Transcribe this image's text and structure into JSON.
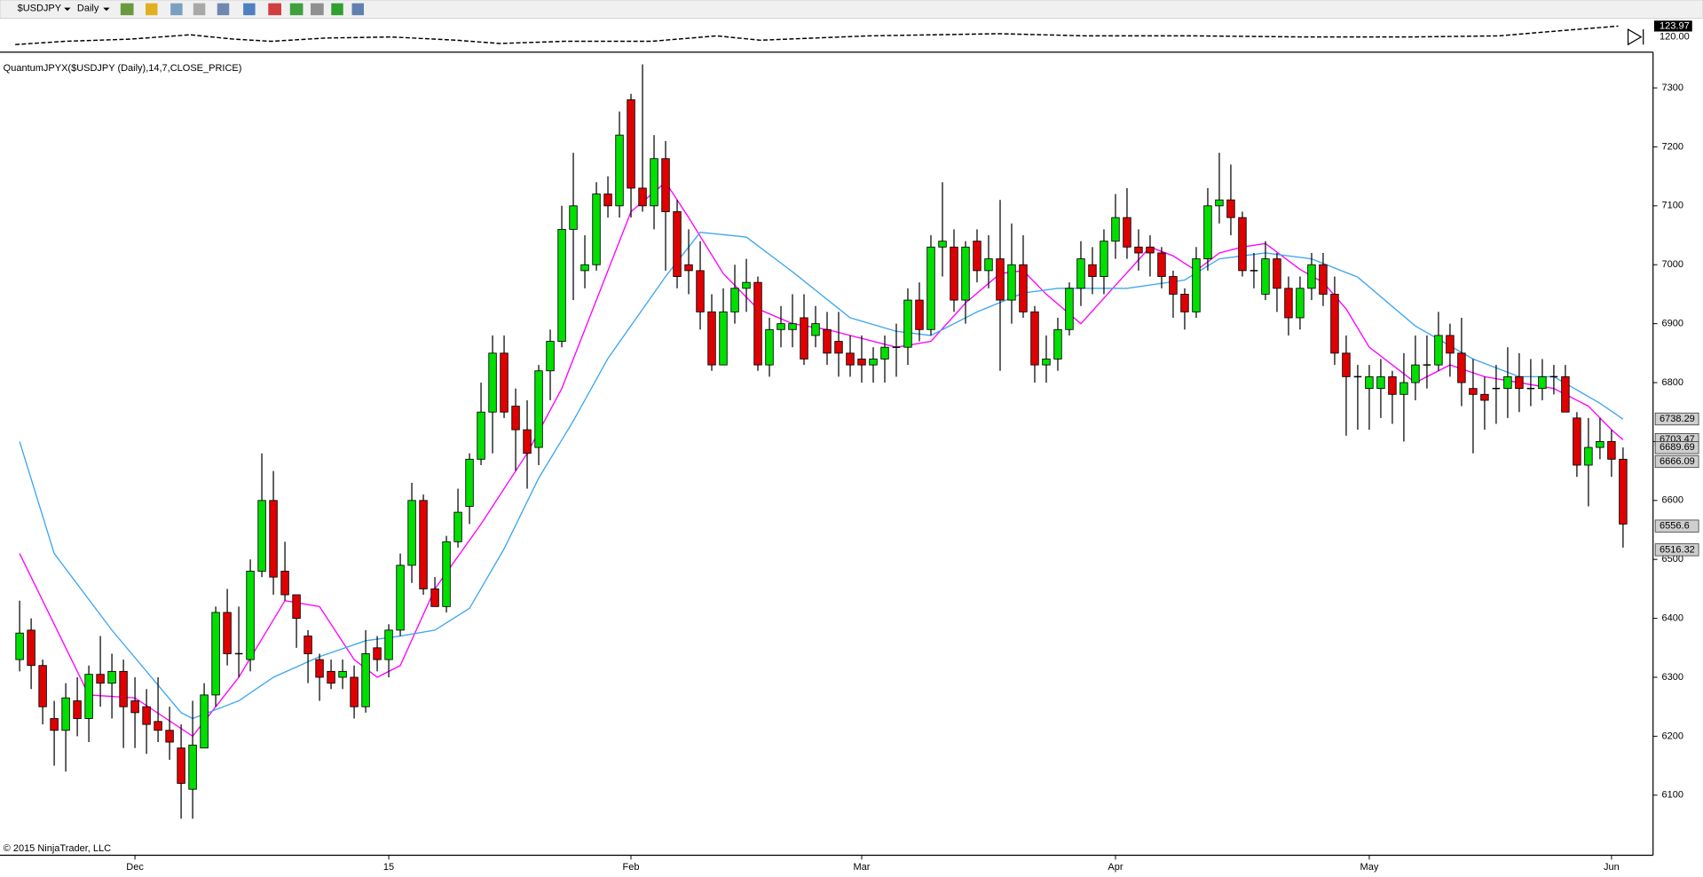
{
  "chart_data": {
    "type": "candlestick",
    "symbol": "$USDJPY",
    "interval": "Daily",
    "title": "QuantumJPYX($USDJPY (Daily),14,7,CLOSE_PRICE)",
    "copyright": "© 2015 NinjaTrader, LLC",
    "overview_labels": [
      "123.97",
      "120.00"
    ],
    "up_color": "#00e000",
    "down_color": "#e00000",
    "xlim": [
      -1.7,
      141.6
    ],
    "xticks": [
      {
        "value": 10,
        "label": "Dec"
      },
      {
        "value": 32,
        "label": "15"
      },
      {
        "value": 53,
        "label": "Feb"
      },
      {
        "value": 73,
        "label": "Mar"
      },
      {
        "value": 95,
        "label": "Apr"
      },
      {
        "value": 117,
        "label": "May"
      },
      {
        "value": 138,
        "label": "Jun"
      }
    ],
    "ylim": [
      5998,
      7357
    ],
    "yticks": [
      6100,
      6200,
      6300,
      6400,
      6500,
      6600,
      6700,
      6800,
      6900,
      7000,
      7100,
      7200,
      7300
    ],
    "candles": {
      "open": [
        6330,
        6380,
        6320,
        6230,
        6210,
        6260,
        6230,
        6305,
        6290,
        6310,
        6260,
        6250,
        6225,
        6210,
        6180,
        6110,
        6180,
        6270,
        6410,
        6340,
        6330,
        6480,
        6600,
        6480,
        6440,
        6370,
        6330,
        6310,
        6300,
        6300,
        6250,
        6350,
        6330,
        6380,
        6490,
        6600,
        6450,
        6420,
        6530,
        6590,
        6670,
        6750,
        6850,
        6760,
        6720,
        6690,
        6820,
        6870,
        7060,
        6990,
        7000,
        7120,
        7100,
        7280,
        7130,
        7100,
        7180,
        7090,
        7000,
        6990,
        6920,
        6830,
        6920,
        6960,
        6970,
        6830,
        6890,
        6890,
        6910,
        6880,
        6890,
        6870,
        6850,
        6840,
        6830,
        6840,
        6860,
        6860,
        6940,
        6890,
        7030,
        7030,
        6940,
        7040,
        6990,
        7010,
        6940,
        7000,
        6920,
        6830,
        6840,
        6890,
        6960,
        7000,
        6980,
        7040,
        7080,
        7030,
        7030,
        7020,
        6980,
        6950,
        6920,
        7010,
        7100,
        7110,
        7080,
        6990,
        6950,
        7010,
        6960,
        6910,
        6960,
        7000,
        6950,
        6850,
        6810,
        6790,
        6790,
        6810,
        6780,
        6800,
        6830,
        6830,
        6880,
        6850,
        6790,
        6780,
        6790,
        6790,
        6810,
        6790,
        6790,
        6810,
        6810,
        6740,
        6660,
        6690,
        6700,
        6670
      ],
      "high": [
        6430,
        6400,
        6330,
        6260,
        6290,
        6300,
        6320,
        6370,
        6340,
        6330,
        6300,
        6280,
        6300,
        6250,
        6220,
        6260,
        6290,
        6420,
        6450,
        6420,
        6500,
        6680,
        6650,
        6530,
        6440,
        6380,
        6340,
        6330,
        6330,
        6320,
        6380,
        6370,
        6390,
        6510,
        6630,
        6610,
        6470,
        6540,
        6620,
        6680,
        6800,
        6880,
        6880,
        6790,
        6770,
        6830,
        6890,
        7100,
        7190,
        7050,
        7140,
        7150,
        7260,
        7290,
        7340,
        7220,
        7210,
        7110,
        7060,
        7040,
        6950,
        6960,
        7000,
        7010,
        6980,
        6910,
        6930,
        6950,
        6950,
        6930,
        6920,
        6920,
        6880,
        6880,
        6860,
        6880,
        6900,
        6960,
        6970,
        7050,
        7140,
        7060,
        7040,
        7060,
        7050,
        7110,
        7070,
        7050,
        6930,
        6880,
        6910,
        6970,
        7040,
        7030,
        7060,
        7120,
        7130,
        7060,
        7050,
        7030,
        6990,
        6960,
        7030,
        7130,
        7190,
        7170,
        7090,
        7020,
        7040,
        7020,
        6980,
        6980,
        7020,
        7020,
        6980,
        6880,
        6830,
        6830,
        6840,
        6820,
        6850,
        6880,
        6880,
        6920,
        6900,
        6910,
        6840,
        6810,
        6830,
        6860,
        6850,
        6840,
        6840,
        6830,
        6830,
        6750,
        6740,
        6740,
        6720,
        6690
      ],
      "low": [
        6310,
        6280,
        6220,
        6150,
        6140,
        6200,
        6190,
        6250,
        6230,
        6180,
        6180,
        6170,
        6190,
        6160,
        6060,
        6060,
        6180,
        6250,
        6320,
        6300,
        6310,
        6470,
        6440,
        6430,
        6350,
        6290,
        6260,
        6280,
        6280,
        6230,
        6240,
        6310,
        6300,
        6370,
        6460,
        6440,
        6420,
        6410,
        6520,
        6560,
        6660,
        6680,
        6740,
        6650,
        6620,
        6660,
        6770,
        6860,
        6940,
        6960,
        6990,
        7080,
        7080,
        7080,
        7090,
        7060,
        6990,
        6960,
        6950,
        6890,
        6820,
        6830,
        6900,
        6920,
        6820,
        6810,
        6860,
        6860,
        6830,
        6860,
        6830,
        6810,
        6810,
        6800,
        6800,
        6800,
        6810,
        6830,
        6870,
        6880,
        6980,
        6920,
        6900,
        6970,
        6960,
        6820,
        6900,
        6910,
        6800,
        6800,
        6820,
        6880,
        6930,
        6950,
        6950,
        7010,
        7010,
        6990,
        6980,
        6960,
        6910,
        6890,
        6910,
        6990,
        7070,
        7050,
        6980,
        6960,
        6940,
        6920,
        6880,
        6890,
        6940,
        6930,
        6830,
        6710,
        6720,
        6720,
        6740,
        6730,
        6700,
        6770,
        6790,
        6820,
        6810,
        6760,
        6680,
        6720,
        6730,
        6740,
        6750,
        6760,
        6770,
        6780,
        6750,
        6640,
        6590,
        6670,
        6640,
        6520
      ],
      "close": [
        6375,
        6320,
        6250,
        6210,
        6265,
        6230,
        6305,
        6290,
        6310,
        6250,
        6240,
        6220,
        6210,
        6190,
        6120,
        6185,
        6270,
        6410,
        6340,
        6340,
        6480,
        6600,
        6470,
        6440,
        6400,
        6340,
        6300,
        6290,
        6310,
        6250,
        6340,
        6330,
        6380,
        6490,
        6600,
        6450,
        6420,
        6530,
        6580,
        6670,
        6750,
        6850,
        6750,
        6720,
        6680,
        6820,
        6870,
        7060,
        7100,
        7000,
        7120,
        7100,
        7220,
        7130,
        7100,
        7180,
        7090,
        6980,
        6990,
        6920,
        6830,
        6920,
        6960,
        6970,
        6830,
        6890,
        6900,
        6900,
        6840,
        6900,
        6850,
        6850,
        6830,
        6830,
        6840,
        6860,
        6860,
        6940,
        6890,
        7030,
        7040,
        6940,
        7030,
        6990,
        7010,
        6940,
        7000,
        6920,
        6830,
        6840,
        6890,
        6960,
        7010,
        6980,
        7040,
        7080,
        7030,
        7020,
        7020,
        6980,
        6950,
        6920,
        7010,
        7100,
        7110,
        7080,
        6990,
        6990,
        7010,
        6960,
        6910,
        6960,
        7000,
        6950,
        6850,
        6810,
        6810,
        6810,
        6810,
        6780,
        6800,
        6830,
        6830,
        6880,
        6850,
        6800,
        6780,
        6770,
        6790,
        6810,
        6790,
        6790,
        6810,
        6810,
        6750,
        6660,
        6690,
        6700,
        6670,
        6560
      ]
    },
    "lines": [
      {
        "color": "#ff00ff",
        "x": [
          0,
          6,
          10,
          15,
          19,
          23,
          26,
          29,
          31,
          33,
          36,
          40,
          44,
          47,
          50,
          53,
          56,
          58,
          61,
          64,
          67,
          70,
          73,
          76,
          79,
          82,
          85,
          87,
          89,
          92,
          95,
          98,
          100,
          102,
          104,
          106,
          108,
          111,
          113,
          115,
          117,
          121,
          124,
          127,
          130,
          133,
          136,
          138,
          139
        ],
        "values": [
          6510,
          6270,
          6265,
          6200,
          6300,
          6430,
          6420,
          6330,
          6300,
          6320,
          6450,
          6560,
          6680,
          6790,
          6940,
          7090,
          7140,
          7080,
          6985,
          6925,
          6900,
          6890,
          6875,
          6860,
          6870,
          6935,
          6985,
          6990,
          6950,
          6900,
          6965,
          7030,
          7015,
          6990,
          7020,
          7030,
          7036,
          6992,
          6970,
          6925,
          6860,
          6800,
          6830,
          6810,
          6800,
          6790,
          6760,
          6720,
          6703
        ]
      },
      {
        "color": "#3ea6f0",
        "x": [
          0,
          3,
          8,
          14,
          15,
          19,
          22,
          26,
          30,
          33,
          36,
          39,
          42,
          45,
          48,
          51,
          56,
          59,
          63,
          67,
          72,
          76,
          79,
          83,
          87,
          90,
          96,
          101,
          104,
          108,
          112,
          116,
          121,
          126,
          130,
          133,
          137,
          139
        ],
        "values": [
          6700,
          6510,
          6380,
          6240,
          6230,
          6260,
          6300,
          6335,
          6362,
          6370,
          6380,
          6417,
          6518,
          6638,
          6735,
          6841,
          6980,
          7055,
          7047,
          6988,
          6910,
          6887,
          6880,
          6920,
          6952,
          6960,
          6960,
          6974,
          7010,
          7020,
          7010,
          6979,
          6896,
          6840,
          6810,
          6810,
          6765,
          6738
        ]
      }
    ],
    "price_labels": [
      6738.29,
      6703.47,
      6689.69,
      6666.09,
      6556.6,
      6516.32
    ]
  }
}
